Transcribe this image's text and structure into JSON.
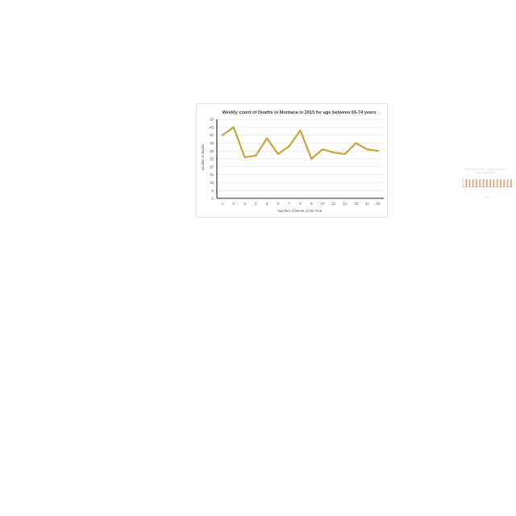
{
  "chart_data": {
    "type": "line",
    "title": "Weekly count of Deaths in Montana in 2015 for age between 65-74 years",
    "xlabel": "Number of Week of the Year",
    "ylabel": "number of deaths",
    "x": [
      1,
      2,
      3,
      4,
      5,
      6,
      7,
      8,
      9,
      10,
      11,
      12,
      13,
      14,
      15
    ],
    "series": [
      {
        "values": [
          40,
          45,
          26,
          27,
          38,
          28,
          33,
          43,
          25,
          31,
          29,
          28,
          35,
          31,
          30
        ]
      }
    ],
    "ylim": [
      0,
      50
    ],
    "yticks": [
      0,
      5,
      10,
      15,
      20,
      25,
      30,
      35,
      40,
      45,
      50
    ],
    "grid": true,
    "color": "#c9a43a",
    "grid_color": "#d9d9d9",
    "axis_color": "#222222"
  },
  "mini_chart": {
    "title": "for the age group 65-74 years in MONTANA",
    "subtitle": "weekly deaths 2015",
    "bar_values": [
      8,
      8,
      8,
      8,
      8,
      8,
      8,
      8,
      8,
      8,
      8,
      8,
      8,
      8
    ],
    "ylim": [
      0,
      10
    ],
    "bar_color": "#e8a070",
    "xlabel": "week"
  }
}
